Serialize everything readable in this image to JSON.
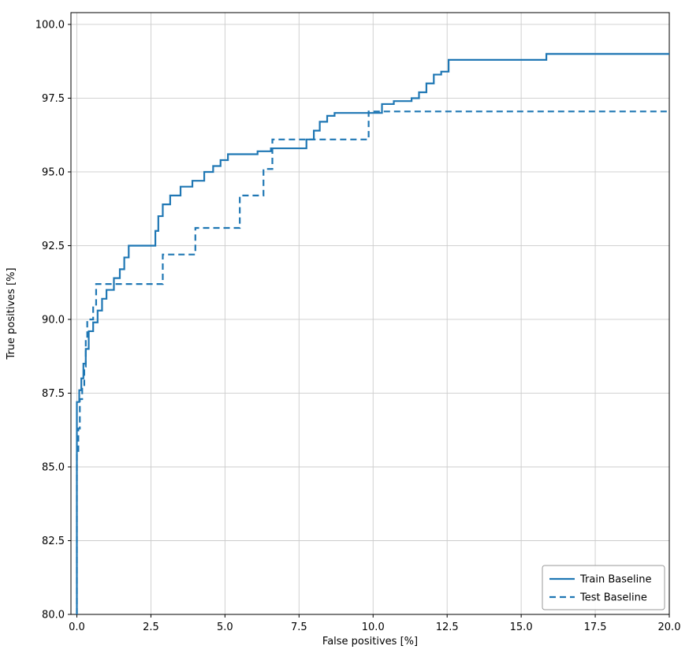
{
  "chart_data": {
    "type": "line",
    "title": "",
    "xlabel": "False positives [%]",
    "ylabel": "True positives [%]",
    "xlim": [
      -0.2,
      20
    ],
    "ylim": [
      80,
      100.4
    ],
    "xticks": [
      0.0,
      2.5,
      5.0,
      7.5,
      10.0,
      12.5,
      15.0,
      17.5,
      20.0
    ],
    "xtick_labels": [
      "0.0",
      "2.5",
      "5.0",
      "7.5",
      "10.0",
      "12.5",
      "15.0",
      "17.5",
      "20.0"
    ],
    "yticks": [
      80.0,
      82.5,
      85.0,
      87.5,
      90.0,
      92.5,
      95.0,
      97.5,
      100.0
    ],
    "ytick_labels": [
      "80.0",
      "82.5",
      "85.0",
      "87.5",
      "90.0",
      "92.5",
      "95.0",
      "97.5",
      "100.0"
    ],
    "grid": true,
    "grid_color": "#cccccc",
    "line_color": "#1f77b4",
    "legend_position": "lower right",
    "series": [
      {
        "name": "Train Baseline",
        "style": "solid",
        "points": [
          [
            0,
            80
          ],
          [
            0,
            87.2
          ],
          [
            0.08,
            87.2
          ],
          [
            0.08,
            87.6
          ],
          [
            0.15,
            87.6
          ],
          [
            0.15,
            88.0
          ],
          [
            0.22,
            88.0
          ],
          [
            0.22,
            88.5
          ],
          [
            0.3,
            88.5
          ],
          [
            0.3,
            89.0
          ],
          [
            0.4,
            89.0
          ],
          [
            0.4,
            89.6
          ],
          [
            0.55,
            89.6
          ],
          [
            0.55,
            89.9
          ],
          [
            0.7,
            89.9
          ],
          [
            0.7,
            90.3
          ],
          [
            0.85,
            90.3
          ],
          [
            0.85,
            90.7
          ],
          [
            1.0,
            90.7
          ],
          [
            1.0,
            91.0
          ],
          [
            1.25,
            91.0
          ],
          [
            1.25,
            91.4
          ],
          [
            1.45,
            91.4
          ],
          [
            1.45,
            91.7
          ],
          [
            1.6,
            91.7
          ],
          [
            1.6,
            92.1
          ],
          [
            1.75,
            92.1
          ],
          [
            1.75,
            92.5
          ],
          [
            2.65,
            92.5
          ],
          [
            2.65,
            93.0
          ],
          [
            2.75,
            93.0
          ],
          [
            2.75,
            93.5
          ],
          [
            2.9,
            93.5
          ],
          [
            2.9,
            93.9
          ],
          [
            3.15,
            93.9
          ],
          [
            3.15,
            94.2
          ],
          [
            3.5,
            94.2
          ],
          [
            3.5,
            94.5
          ],
          [
            3.9,
            94.5
          ],
          [
            3.9,
            94.7
          ],
          [
            4.3,
            94.7
          ],
          [
            4.3,
            95.0
          ],
          [
            4.6,
            95.0
          ],
          [
            4.6,
            95.2
          ],
          [
            4.85,
            95.2
          ],
          [
            4.85,
            95.4
          ],
          [
            5.1,
            95.4
          ],
          [
            5.1,
            95.6
          ],
          [
            6.1,
            95.6
          ],
          [
            6.1,
            95.7
          ],
          [
            6.55,
            95.7
          ],
          [
            6.55,
            95.8
          ],
          [
            7.75,
            95.8
          ],
          [
            7.75,
            96.1
          ],
          [
            8.0,
            96.1
          ],
          [
            8.0,
            96.4
          ],
          [
            8.2,
            96.4
          ],
          [
            8.2,
            96.7
          ],
          [
            8.45,
            96.7
          ],
          [
            8.45,
            96.9
          ],
          [
            8.7,
            96.9
          ],
          [
            8.7,
            97.0
          ],
          [
            10.3,
            97.0
          ],
          [
            10.3,
            97.3
          ],
          [
            10.7,
            97.3
          ],
          [
            10.7,
            97.4
          ],
          [
            11.3,
            97.4
          ],
          [
            11.3,
            97.5
          ],
          [
            11.55,
            97.5
          ],
          [
            11.55,
            97.7
          ],
          [
            11.8,
            97.7
          ],
          [
            11.8,
            98.0
          ],
          [
            12.05,
            98.0
          ],
          [
            12.05,
            98.3
          ],
          [
            12.3,
            98.3
          ],
          [
            12.3,
            98.4
          ],
          [
            12.55,
            98.4
          ],
          [
            12.55,
            98.8
          ],
          [
            15.85,
            98.8
          ],
          [
            15.85,
            99.0
          ],
          [
            20,
            99.0
          ]
        ]
      },
      {
        "name": "Test Baseline",
        "style": "dashed",
        "points": [
          [
            0,
            80
          ],
          [
            0,
            85.4
          ],
          [
            0.05,
            85.4
          ],
          [
            0.05,
            86.3
          ],
          [
            0.1,
            86.3
          ],
          [
            0.1,
            87.3
          ],
          [
            0.18,
            87.3
          ],
          [
            0.18,
            87.7
          ],
          [
            0.25,
            87.7
          ],
          [
            0.25,
            88.4
          ],
          [
            0.3,
            88.4
          ],
          [
            0.3,
            89.3
          ],
          [
            0.35,
            89.3
          ],
          [
            0.35,
            90.0
          ],
          [
            0.55,
            90.0
          ],
          [
            0.55,
            90.5
          ],
          [
            0.65,
            90.5
          ],
          [
            0.65,
            91.2
          ],
          [
            2.9,
            91.2
          ],
          [
            2.9,
            92.2
          ],
          [
            4.0,
            92.2
          ],
          [
            4.0,
            93.1
          ],
          [
            5.5,
            93.1
          ],
          [
            5.5,
            94.2
          ],
          [
            6.3,
            94.2
          ],
          [
            6.3,
            95.1
          ],
          [
            6.6,
            95.1
          ],
          [
            6.6,
            96.1
          ],
          [
            9.85,
            96.1
          ],
          [
            9.85,
            97.05
          ],
          [
            20,
            97.05
          ]
        ]
      }
    ]
  }
}
